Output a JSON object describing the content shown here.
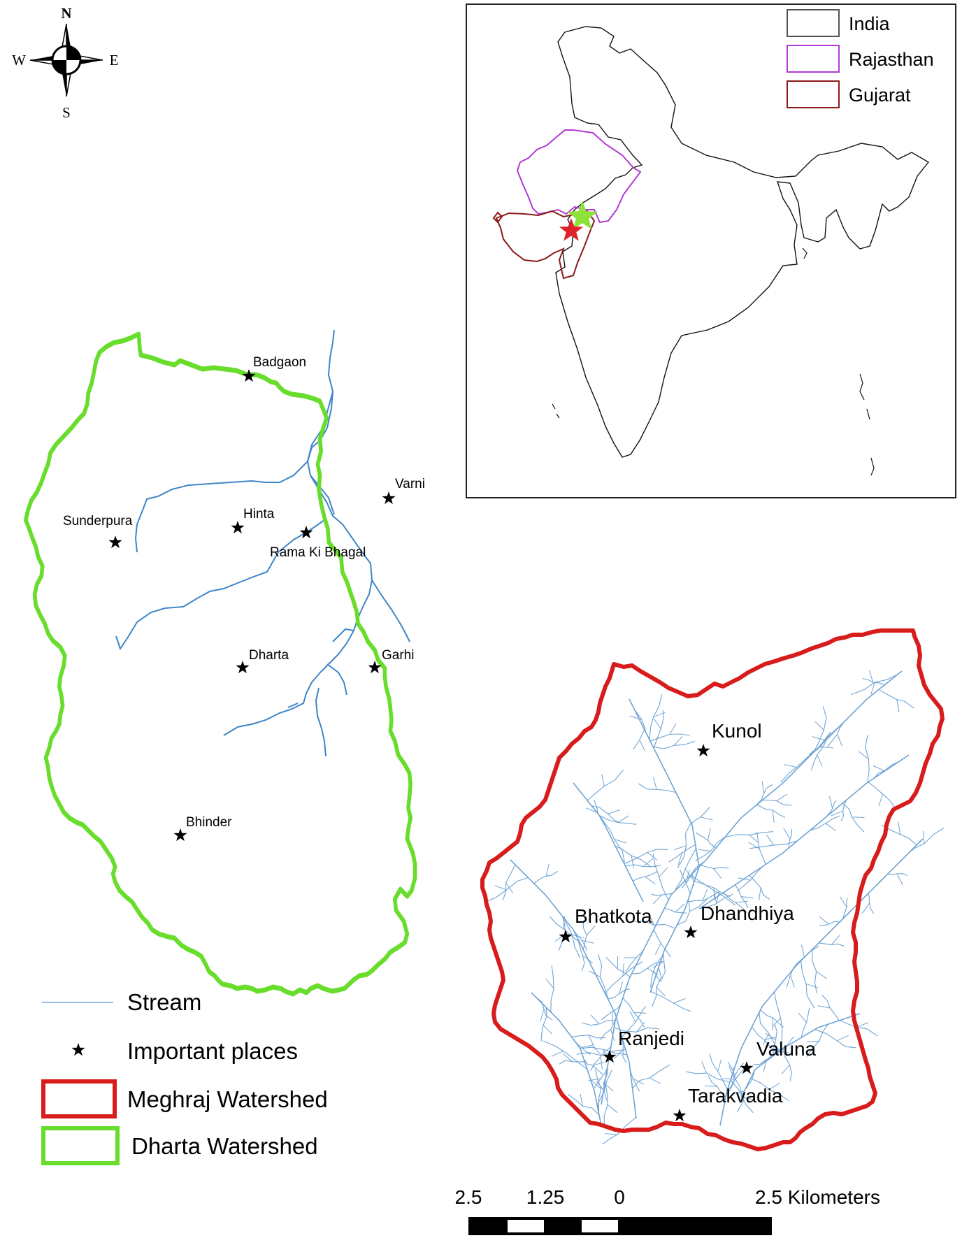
{
  "compass": {
    "n": "N",
    "s": "S",
    "e": "E",
    "w": "W"
  },
  "inset": {
    "legend": [
      {
        "label": "India",
        "color": "#555555"
      },
      {
        "label": "Rajasthan",
        "color": "#b23bd1"
      },
      {
        "label": "Gujarat",
        "color": "#8b1a1a"
      }
    ],
    "star_colors": {
      "dharta": "#8ee03a",
      "meghraj": "#e0222a"
    }
  },
  "dharta_places": [
    "Badgaon",
    "Varni",
    "Sunderpura",
    "Hinta",
    "Rama Ki Bhagal",
    "Dharta",
    "Garhi",
    "Bhinder"
  ],
  "meghraj_places": [
    "Kunol",
    "Bhatkota",
    "Dhandhiya",
    "Ranjedi",
    "Valuna",
    "Tarakvadia"
  ],
  "legend": {
    "stream": "Stream",
    "places": "Important places",
    "meghraj": "Meghraj Watershed",
    "dharta": "Dharta Watershed"
  },
  "colors": {
    "dharta": "#69dd2b",
    "meghraj": "#d81c1c",
    "stream": "#3f86c8",
    "stream_light": "#6fa4d4"
  },
  "scale": {
    "t1": "2.5",
    "t2": "1.25",
    "t3": "0",
    "t4": "2.5 Kilometers"
  }
}
